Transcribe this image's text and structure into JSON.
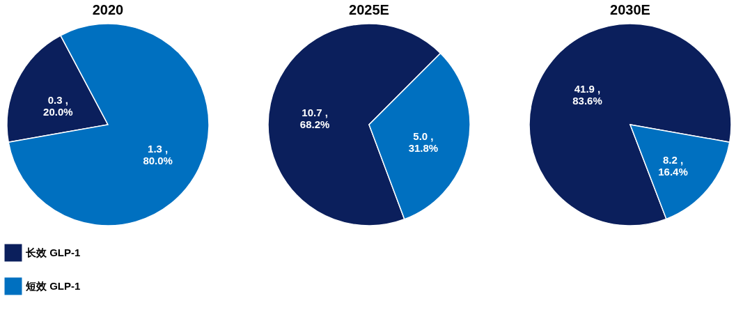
{
  "chart_data": [
    {
      "type": "pie",
      "title": "2020",
      "categories": [
        "长效 GLP-1",
        "短效 GLP-1"
      ],
      "values": [
        20.0,
        80.0
      ],
      "colors": [
        "#0b1f5c",
        "#0070c0"
      ],
      "value_labels": [
        "0.3 ,\n20.0%",
        "1.3 ,\n80.0%"
      ],
      "legend": "bottom left"
    },
    {
      "type": "pie",
      "title": "2025E",
      "categories": [
        null,
        null
      ],
      "values": [
        68.2,
        31.8
      ],
      "colors": [
        "#0b1f5c",
        "#0070c0"
      ],
      "value_labels": [
        "10.7 ,\n68.2%",
        "5.0 ,\n31.8%"
      ]
    },
    {
      "type": "pie",
      "title": "2030E",
      "categories": [
        null,
        null
      ],
      "values": [
        83.6,
        16.4
      ],
      "colors": [
        "#0b1f5c",
        "#0070c0"
      ],
      "value_labels": [
        "41.9 ,\n83.6%",
        "8.2 ,\n16.4%"
      ]
    }
  ]
}
